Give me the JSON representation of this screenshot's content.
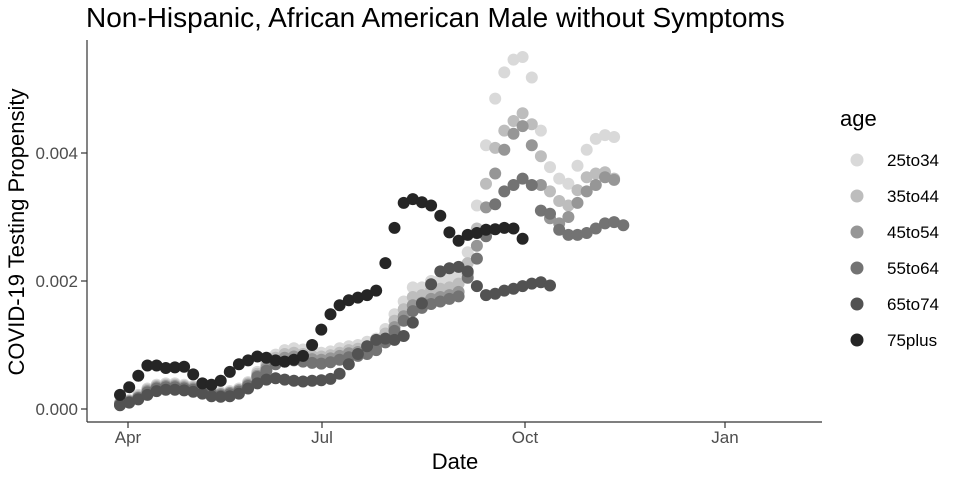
{
  "chart_data": {
    "type": "scatter",
    "title": "Non-Hispanic, African American Male without Symptoms",
    "xlabel": "Date",
    "ylabel": "COVID-19 Testing Propensity",
    "x_ticks": [
      "Apr",
      "Jul",
      "Oct",
      "Jan"
    ],
    "y_ticks": [
      "0.000",
      "0.002",
      "0.004"
    ],
    "ylim": [
      -0.0002,
      0.0057
    ],
    "legend_title": "age",
    "legend_position": "right",
    "grid": false,
    "x": [
      0,
      1,
      2,
      3,
      4,
      5,
      6,
      7,
      8,
      9,
      10,
      11,
      12,
      13,
      14,
      15,
      16,
      17,
      18,
      19,
      20,
      21,
      22,
      23,
      24,
      25,
      26,
      27,
      28,
      29,
      30,
      31,
      32,
      33,
      34,
      35,
      36,
      37,
      38,
      39,
      40,
      41,
      42,
      43,
      44,
      45,
      46,
      47,
      48,
      49,
      50,
      51,
      52,
      53,
      54,
      55,
      56,
      57,
      58,
      59,
      60,
      61,
      62,
      63,
      64,
      65,
      66,
      67,
      68,
      69,
      70,
      71,
      72,
      73
    ],
    "series": [
      {
        "name": "25to34",
        "color": "#d9d9d9",
        "values": [
          0.0001,
          0.00014,
          0.00022,
          0.00032,
          0.00038,
          0.0004,
          0.0004,
          0.00038,
          0.00036,
          0.00032,
          0.00028,
          0.00026,
          0.00028,
          0.00032,
          0.00042,
          0.00058,
          0.00072,
          0.00085,
          0.00092,
          0.00095,
          0.00093,
          0.0009,
          0.00088,
          0.0009,
          0.00095,
          0.00098,
          0.001,
          0.00105,
          0.0011,
          0.00125,
          0.00148,
          0.00168,
          0.0019,
          0.0019,
          0.002,
          0.00202,
          0.00205,
          0.0021,
          0.00245,
          0.00318,
          0.00412,
          0.00485,
          0.00526,
          0.00546,
          0.0055,
          0.00518,
          0.00435,
          0.00378,
          0.0036,
          0.00352,
          0.0038,
          0.00405,
          0.00422,
          0.00428,
          0.00425
        ]
      },
      {
        "name": "35to44",
        "color": "#bdbdbd",
        "values": [
          9e-05,
          0.00013,
          0.0002,
          0.0003,
          0.00036,
          0.00038,
          0.00038,
          0.00036,
          0.00034,
          0.0003,
          0.00026,
          0.00024,
          0.00026,
          0.0003,
          0.0004,
          0.00055,
          0.00068,
          0.0008,
          0.00086,
          0.00088,
          0.00086,
          0.00083,
          0.00082,
          0.00084,
          0.00088,
          0.00092,
          0.00094,
          0.00098,
          0.00104,
          0.00118,
          0.00138,
          0.00156,
          0.00175,
          0.00178,
          0.00185,
          0.00188,
          0.0019,
          0.00196,
          0.00228,
          0.00282,
          0.00352,
          0.00408,
          0.00435,
          0.0045,
          0.00462,
          0.00445,
          0.00395,
          0.0034,
          0.00325,
          0.00318,
          0.00342,
          0.00362,
          0.00368,
          0.0037,
          0.0036
        ]
      },
      {
        "name": "45to54",
        "color": "#969696",
        "values": [
          8e-05,
          0.00012,
          0.00018,
          0.00028,
          0.00034,
          0.00036,
          0.00036,
          0.00034,
          0.00032,
          0.00029,
          0.00025,
          0.00023,
          0.00025,
          0.00029,
          0.00038,
          0.00052,
          0.00064,
          0.00075,
          0.0008,
          0.00082,
          0.0008,
          0.00078,
          0.00077,
          0.00079,
          0.00083,
          0.00087,
          0.00089,
          0.00092,
          0.00098,
          0.0011,
          0.00128,
          0.00145,
          0.00162,
          0.00166,
          0.00172,
          0.00175,
          0.00178,
          0.00183,
          0.00212,
          0.00255,
          0.00315,
          0.00368,
          0.00405,
          0.0043,
          0.00442,
          0.00412,
          0.0035,
          0.00298,
          0.0029,
          0.003,
          0.00322,
          0.0034,
          0.0035,
          0.00362,
          0.00358
        ]
      },
      {
        "name": "55to64",
        "color": "#737373",
        "values": [
          7e-05,
          0.00011,
          0.00017,
          0.00026,
          0.00032,
          0.00034,
          0.00034,
          0.00032,
          0.0003,
          0.00027,
          0.00023,
          0.00021,
          0.00023,
          0.00027,
          0.00036,
          0.0005,
          0.0006,
          0.0007,
          0.00074,
          0.00076,
          0.00074,
          0.00072,
          0.00071,
          0.00073,
          0.00077,
          0.00081,
          0.00083,
          0.00086,
          0.00092,
          0.00104,
          0.00122,
          0.00138,
          0.00153,
          0.00158,
          0.00164,
          0.00168,
          0.00172,
          0.00176,
          0.00205,
          0.00235,
          0.0027,
          0.0032,
          0.0034,
          0.0035,
          0.0036,
          0.0035,
          0.0031,
          0.00305,
          0.0028,
          0.00272,
          0.00272,
          0.00275,
          0.00282,
          0.0029,
          0.00292,
          0.00287
        ]
      },
      {
        "name": "65to74",
        "color": "#525252",
        "values": [
          6e-05,
          0.0001,
          0.00015,
          0.00022,
          0.00028,
          0.0003,
          0.0003,
          0.00029,
          0.00027,
          0.00024,
          0.0002,
          0.00019,
          0.0002,
          0.00024,
          0.00032,
          0.0004,
          0.00046,
          0.00048,
          0.00046,
          0.00044,
          0.00043,
          0.00044,
          0.00045,
          0.00047,
          0.00055,
          0.0007,
          0.00086,
          0.00098,
          0.00108,
          0.0011,
          0.00108,
          0.00114,
          0.00135,
          0.00165,
          0.00195,
          0.00215,
          0.0022,
          0.00222,
          0.00215,
          0.00192,
          0.00178,
          0.0018,
          0.00185,
          0.00188,
          0.00192,
          0.00196,
          0.00198,
          0.00193
        ]
      },
      {
        "name": "75plus",
        "color": "#252525",
        "values": [
          0.00022,
          0.00034,
          0.00052,
          0.00068,
          0.00068,
          0.00064,
          0.00065,
          0.00066,
          0.00054,
          0.0004,
          0.00038,
          0.00044,
          0.00058,
          0.0007,
          0.00076,
          0.00082,
          0.0008,
          0.00076,
          0.00074,
          0.00077,
          0.00083,
          0.001,
          0.00124,
          0.00148,
          0.00162,
          0.0017,
          0.00174,
          0.00178,
          0.00185,
          0.00228,
          0.00283,
          0.00322,
          0.00328,
          0.00323,
          0.00318,
          0.00302,
          0.00276,
          0.00263,
          0.00272,
          0.00275,
          0.0028,
          0.00281,
          0.00283,
          0.00282,
          0.00266
        ]
      }
    ]
  }
}
